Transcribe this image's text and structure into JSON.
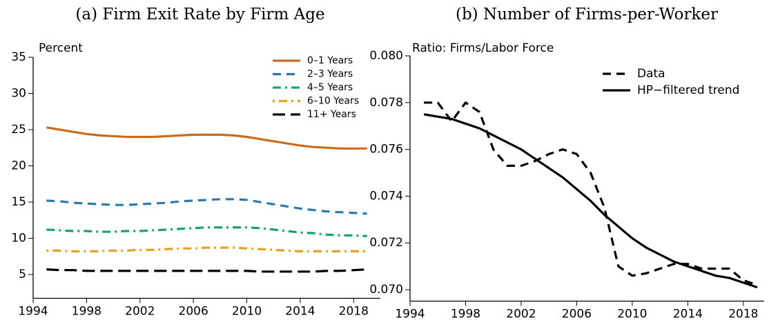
{
  "chart_data": [
    {
      "type": "line",
      "title": "(a) Firm Exit Rate by Firm Age",
      "ylabel": "Percent",
      "x": [
        1995,
        1996,
        1997,
        1998,
        1999,
        2000,
        2001,
        2002,
        2003,
        2004,
        2005,
        2006,
        2007,
        2008,
        2009,
        2010,
        2011,
        2012,
        2013,
        2014,
        2015,
        2016,
        2017,
        2018,
        2019
      ],
      "series": [
        {
          "name": "0–1 Years",
          "color": "#cc6a1a",
          "linestyle": "solid",
          "values": [
            25.3,
            25.0,
            24.7,
            24.4,
            24.2,
            24.1,
            24.0,
            24.0,
            24.0,
            24.1,
            24.2,
            24.3,
            24.3,
            24.3,
            24.2,
            24.0,
            23.7,
            23.4,
            23.1,
            22.8,
            22.6,
            22.5,
            22.4,
            22.4,
            22.4
          ]
        },
        {
          "name": "2–3 Years",
          "color": "#2a78b0",
          "linestyle": "dashed",
          "values": [
            15.2,
            15.1,
            14.9,
            14.8,
            14.7,
            14.6,
            14.6,
            14.7,
            14.8,
            14.9,
            15.1,
            15.2,
            15.3,
            15.4,
            15.4,
            15.3,
            15.0,
            14.7,
            14.4,
            14.1,
            13.9,
            13.7,
            13.6,
            13.5,
            13.4
          ]
        },
        {
          "name": "4–5 Years",
          "color": "#16a07a",
          "linestyle": "dashdot",
          "values": [
            11.2,
            11.1,
            11.0,
            11.0,
            10.9,
            10.9,
            11.0,
            11.0,
            11.1,
            11.2,
            11.3,
            11.4,
            11.5,
            11.5,
            11.5,
            11.5,
            11.4,
            11.2,
            11.0,
            10.8,
            10.7,
            10.5,
            10.4,
            10.4,
            10.3
          ]
        },
        {
          "name": "6–10 Years",
          "color": "#e6a020",
          "linestyle": "dotdash",
          "values": [
            8.3,
            8.3,
            8.2,
            8.2,
            8.2,
            8.3,
            8.3,
            8.4,
            8.4,
            8.5,
            8.6,
            8.6,
            8.7,
            8.7,
            8.7,
            8.6,
            8.5,
            8.4,
            8.3,
            8.2,
            8.2,
            8.2,
            8.2,
            8.2,
            8.2
          ]
        },
        {
          "name": "11+ Years",
          "color": "#000000",
          "linestyle": "longdash",
          "values": [
            5.7,
            5.6,
            5.6,
            5.5,
            5.5,
            5.5,
            5.5,
            5.5,
            5.5,
            5.5,
            5.5,
            5.5,
            5.5,
            5.5,
            5.5,
            5.5,
            5.4,
            5.4,
            5.4,
            5.4,
            5.4,
            5.5,
            5.5,
            5.6,
            5.7
          ]
        }
      ],
      "xlim": [
        1994,
        2020
      ],
      "xticks": [
        1994,
        1998,
        2002,
        2006,
        2010,
        2014,
        2018
      ],
      "ylim": [
        2,
        35
      ],
      "yticks": [
        5,
        10,
        15,
        20,
        25,
        30,
        35
      ],
      "legend": "upper right"
    },
    {
      "type": "line",
      "title": "(b) Number of Firms-per-Worker",
      "ylabel": "Ratio: Firms/Labor Force",
      "x": [
        1995,
        1996,
        1997,
        1998,
        1999,
        2000,
        2001,
        2002,
        2003,
        2004,
        2005,
        2006,
        2007,
        2008,
        2009,
        2010,
        2011,
        2012,
        2013,
        2014,
        2015,
        2016,
        2017,
        2018,
        2019
      ],
      "series": [
        {
          "name": "Data",
          "color": "#000000",
          "linestyle": "dashed",
          "values": [
            0.078,
            0.078,
            0.0772,
            0.078,
            0.0776,
            0.076,
            0.0753,
            0.0753,
            0.0755,
            0.0758,
            0.076,
            0.0758,
            0.075,
            0.0735,
            0.071,
            0.0706,
            0.0707,
            0.0709,
            0.0711,
            0.0711,
            0.0709,
            0.0709,
            0.0709,
            0.0704,
            0.0702
          ]
        },
        {
          "name": "HP−filtered trend",
          "color": "#000000",
          "linestyle": "solid",
          "values": [
            0.0775,
            0.0774,
            0.0773,
            0.0771,
            0.0769,
            0.0766,
            0.0763,
            0.076,
            0.0756,
            0.0752,
            0.0748,
            0.0743,
            0.0738,
            0.0732,
            0.0727,
            0.0722,
            0.0718,
            0.0715,
            0.0712,
            0.071,
            0.0708,
            0.0706,
            0.0705,
            0.0703,
            0.0701
          ]
        }
      ],
      "xlim": [
        1994,
        2019.5
      ],
      "xticks": [
        1994,
        1998,
        2002,
        2006,
        2010,
        2014,
        2018
      ],
      "ylim": [
        0.0696,
        0.08
      ],
      "yticks": [
        {
          "value": 0.07,
          "label": "0.070"
        },
        0.072,
        0.074,
        0.076,
        0.078,
        {
          "value": 0.08,
          "label": "0.080"
        }
      ],
      "legend": "upper right"
    }
  ]
}
